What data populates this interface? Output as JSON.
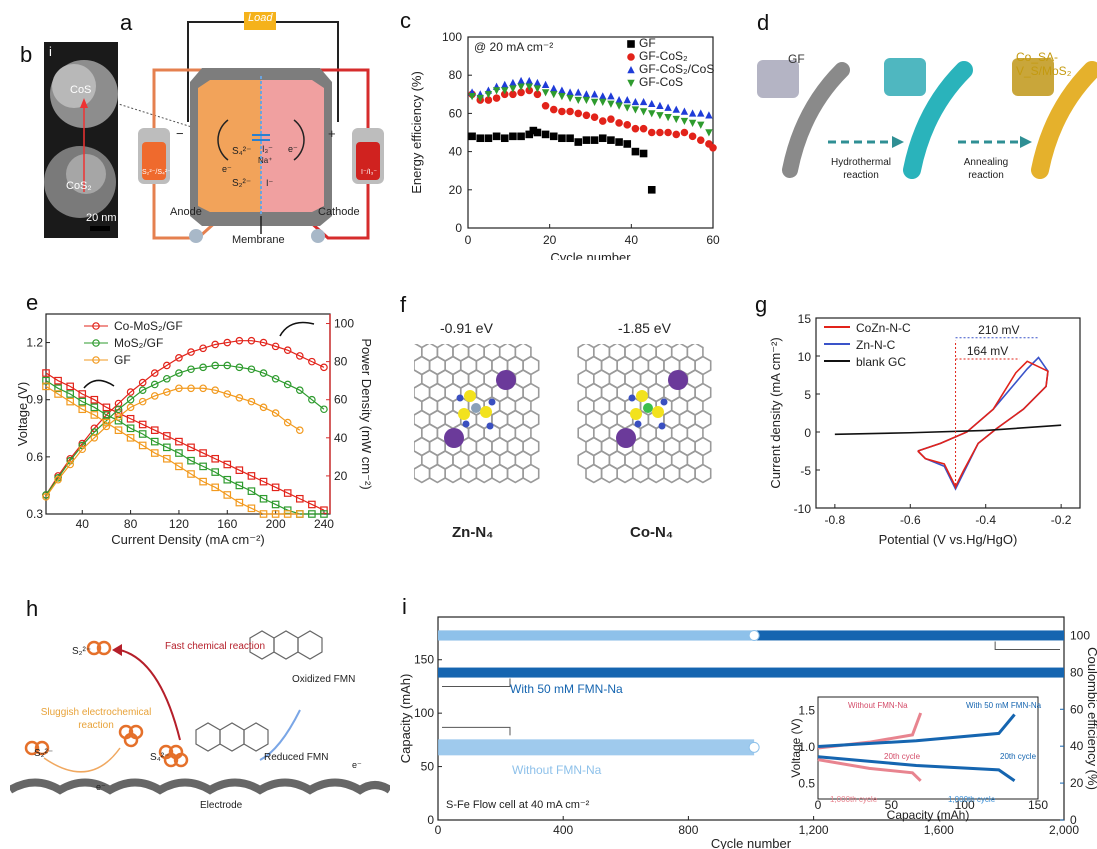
{
  "panels": {
    "a": {
      "label": "a",
      "load": "Load",
      "minus": "−",
      "plus": "+",
      "anode": "Anode",
      "cathode": "Cathode",
      "membrane": "Membrane",
      "anode_tank": "S₂²⁻/S₄²⁻",
      "cathode_tank": "I⁻/I₃⁻",
      "s4": "S₄²⁻",
      "s2": "S₂²⁻",
      "i3": "I₃⁻",
      "i": "I⁻",
      "na": "Na⁺",
      "e1": "e⁻",
      "e2": "e⁻"
    },
    "b": {
      "label": "b",
      "sub": "i",
      "cos": "CoS",
      "cos2": "CoS₂",
      "scale": "20 nm"
    },
    "c": {
      "label": "c"
    },
    "d": {
      "label": "d",
      "gf": "GF",
      "final": "Co_SA-V_S/MoS₂",
      "step1": "Hydrothermal reaction",
      "step2": "Annealing reaction"
    },
    "e": {
      "label": "e"
    },
    "f": {
      "label": "f",
      "e1": "-0.91 eV",
      "e2": "-1.85 eV",
      "n1": "Zn-N₄",
      "n2": "Co-N₄"
    },
    "g": {
      "label": "g",
      "d1": "210 mV",
      "d2": "164 mV"
    },
    "h": {
      "label": "h",
      "fast": "Fast chemical reaction",
      "slug": "Sluggish electrochemical reaction",
      "ox": "Oxidized FMN",
      "red": "Reduced FMN",
      "electrode": "Electrode",
      "s2": "S₂²⁻",
      "s2b": "S₂²⁻",
      "s4": "S₄²⁻",
      "e1": "e⁻",
      "e2": "e⁻"
    },
    "i": {
      "label": "i",
      "with": "With 50 mM FMN-Na",
      "without": "Without FMN-Na",
      "cell": "S-Fe Flow cell at 40 mA cm⁻²",
      "inset_without": "Without FMN-Na",
      "inset_with": "With 50 mM FMN-Na",
      "c20a": "20th cycle",
      "c20b": "20th cycle",
      "c1000a": "1,000th cycle",
      "c1000b": "1,000th cycle"
    }
  },
  "chart_data": [
    {
      "id": "c",
      "type": "scatter",
      "annotation": "@ 20 mA cm⁻²",
      "xlabel": "Cycle number",
      "ylabel": "Energy efficiency (%)",
      "xlim": [
        0,
        60
      ],
      "ylim": [
        0,
        100
      ],
      "xticks": [
        "0",
        "20",
        "40",
        "60"
      ],
      "yticks": [
        "0",
        "20",
        "40",
        "60",
        "80",
        "100"
      ],
      "series": [
        {
          "name": "GF",
          "color": "#000000",
          "marker": "square",
          "x": [
            1,
            3,
            5,
            7,
            9,
            11,
            13,
            15,
            16,
            17,
            19,
            21,
            23,
            25,
            27,
            29,
            31,
            33,
            35,
            37,
            39,
            41,
            43,
            45
          ],
          "y": [
            48,
            47,
            47,
            48,
            47,
            48,
            48,
            49,
            51,
            50,
            49,
            48,
            47,
            47,
            45,
            46,
            46,
            47,
            46,
            45,
            44,
            40,
            39,
            20
          ]
        },
        {
          "name": "GF-CoS₂",
          "color": "#e2231a",
          "marker": "circle",
          "x": [
            1,
            3,
            5,
            7,
            9,
            11,
            13,
            15,
            17,
            19,
            21,
            23,
            25,
            27,
            29,
            31,
            33,
            35,
            37,
            39,
            41,
            43,
            45,
            47,
            49,
            51,
            53,
            55,
            57,
            59,
            60
          ],
          "y": [
            70,
            67,
            67,
            68,
            70,
            70,
            71,
            72,
            70,
            64,
            62,
            61,
            61,
            60,
            59,
            58,
            56,
            57,
            55,
            54,
            52,
            52,
            50,
            50,
            50,
            49,
            50,
            48,
            46,
            44,
            42
          ]
        },
        {
          "name": "GF-CoS₂/CoS",
          "color": "#1f3cd8",
          "marker": "triangle",
          "x": [
            1,
            3,
            5,
            7,
            9,
            11,
            13,
            15,
            17,
            19,
            21,
            23,
            25,
            27,
            29,
            31,
            33,
            35,
            37,
            39,
            41,
            43,
            45,
            47,
            49,
            51,
            53,
            55,
            57,
            59
          ],
          "y": [
            71,
            70,
            72,
            74,
            75,
            76,
            77,
            77,
            76,
            75,
            73,
            72,
            71,
            71,
            70,
            70,
            69,
            69,
            67,
            67,
            66,
            66,
            65,
            64,
            63,
            62,
            61,
            60,
            60,
            59
          ]
        },
        {
          "name": "GF-CoS",
          "color": "#2e9b2e",
          "marker": "triangle-down",
          "x": [
            1,
            3,
            5,
            7,
            9,
            11,
            13,
            15,
            17,
            19,
            21,
            23,
            25,
            27,
            29,
            31,
            33,
            35,
            37,
            39,
            41,
            43,
            45,
            47,
            49,
            51,
            53,
            55,
            57,
            59
          ],
          "y": [
            69,
            68,
            70,
            72,
            72,
            73,
            74,
            74,
            73,
            71,
            70,
            69,
            68,
            67,
            67,
            66,
            66,
            65,
            64,
            63,
            62,
            61,
            60,
            59,
            58,
            57,
            56,
            55,
            54,
            50
          ]
        }
      ]
    },
    {
      "id": "e",
      "type": "line",
      "xlabel": "Current Density (mA cm⁻²)",
      "ylabel": "Voltage (V)",
      "y2label": "Power Density (mW cm⁻²)",
      "xlim": [
        10,
        245
      ],
      "ylim": [
        0.3,
        1.35
      ],
      "y2lim": [
        0,
        105
      ],
      "xticks": [
        "40",
        "80",
        "120",
        "160",
        "200",
        "240"
      ],
      "yticks": [
        "0.3",
        "0.6",
        "0.9",
        "1.2"
      ],
      "y2ticks": [
        "20",
        "40",
        "60",
        "80",
        "100"
      ],
      "series": [
        {
          "name": "Co-MoS₂/GF",
          "color": "#e2231a",
          "x": [
            10,
            20,
            30,
            40,
            50,
            60,
            70,
            80,
            90,
            100,
            110,
            120,
            130,
            140,
            150,
            160,
            170,
            180,
            190,
            200,
            210,
            220,
            230,
            240
          ],
          "voltage": [
            1.04,
            1.0,
            0.97,
            0.93,
            0.9,
            0.86,
            0.83,
            0.8,
            0.77,
            0.74,
            0.71,
            0.68,
            0.65,
            0.62,
            0.59,
            0.56,
            0.53,
            0.5,
            0.47,
            0.44,
            0.41,
            0.38,
            0.35,
            0.32
          ],
          "power": [
            10,
            20,
            29,
            37,
            45,
            52,
            58,
            64,
            69,
            74,
            78,
            82,
            85,
            87,
            89,
            90,
            91,
            91,
            90,
            88,
            86,
            83,
            80,
            77
          ]
        },
        {
          "name": "MoS₂/GF",
          "color": "#2e9b2e",
          "x": [
            10,
            20,
            30,
            40,
            50,
            60,
            70,
            80,
            90,
            100,
            110,
            120,
            130,
            140,
            150,
            160,
            170,
            180,
            190,
            200,
            210,
            220,
            230,
            240
          ],
          "voltage": [
            1.0,
            0.96,
            0.93,
            0.89,
            0.86,
            0.82,
            0.79,
            0.75,
            0.72,
            0.68,
            0.65,
            0.62,
            0.58,
            0.55,
            0.52,
            0.48,
            0.45,
            0.42,
            0.38,
            0.35,
            0.32,
            0.3,
            0.3,
            0.3
          ],
          "power": [
            10,
            19,
            28,
            36,
            43,
            49,
            55,
            60,
            65,
            68,
            71,
            74,
            76,
            77,
            78,
            78,
            77,
            76,
            74,
            71,
            68,
            65,
            60,
            55
          ]
        },
        {
          "name": "GF",
          "color": "#f29a1f",
          "x": [
            10,
            20,
            30,
            40,
            50,
            60,
            70,
            80,
            90,
            100,
            110,
            120,
            130,
            140,
            150,
            160,
            170,
            180,
            190,
            200,
            210,
            220
          ],
          "voltage": [
            0.97,
            0.93,
            0.89,
            0.85,
            0.82,
            0.78,
            0.74,
            0.7,
            0.66,
            0.62,
            0.59,
            0.55,
            0.51,
            0.47,
            0.44,
            0.4,
            0.36,
            0.33,
            0.3,
            0.3,
            0.3,
            0.3
          ],
          "power": [
            9,
            18,
            26,
            34,
            40,
            46,
            51,
            56,
            59,
            62,
            64,
            66,
            66,
            66,
            65,
            63,
            61,
            59,
            56,
            53,
            48,
            44
          ]
        }
      ]
    },
    {
      "id": "g",
      "type": "line",
      "xlabel": "Potential (V vs.Hg/HgO)",
      "ylabel": "Current density (mA cm⁻²)",
      "xlim": [
        -0.85,
        -0.15
      ],
      "ylim": [
        -10,
        15
      ],
      "xticks": [
        "-0.8",
        "-0.6",
        "-0.4",
        "-0.2"
      ],
      "yticks": [
        "-10",
        "-5",
        "0",
        "5",
        "10",
        "15"
      ],
      "series": [
        {
          "name": "CoZn-N-C",
          "color": "#e2231a"
        },
        {
          "name": "Zn-N-C",
          "color": "#3a53c9"
        },
        {
          "name": "blank GC",
          "color": "#111111"
        }
      ]
    },
    {
      "id": "i",
      "type": "scatter",
      "xlabel": "Cycle number",
      "ylabel": "Capacity (mAh)",
      "y2label": "Coulombic efficiency (%)",
      "xlim": [
        0,
        2000
      ],
      "ylim": [
        0,
        190
      ],
      "y2lim": [
        0,
        110
      ],
      "xticks": [
        "0",
        "400",
        "800",
        "1,200",
        "1,600",
        "2,000"
      ],
      "yticks": [
        "0",
        "50",
        "100",
        "150"
      ],
      "y2ticks": [
        "0",
        "20",
        "40",
        "60",
        "80",
        "100"
      ],
      "series": [
        {
          "name": "With 50 mM FMN-Na",
          "color": "#1565b0",
          "capacity": 138,
          "ce": 100,
          "x_end": 2000
        },
        {
          "name": "Without FMN-Na",
          "color": "#8ec1ea",
          "capacity": 68,
          "ce": 100,
          "x_end": 1010
        }
      ],
      "inset": {
        "xlabel": "Capacity (mAh)",
        "ylabel": "Voltage (V)",
        "xticks": [
          "0",
          "50",
          "100",
          "150"
        ],
        "yticks": [
          "0.5",
          "1.0",
          "1.5"
        ]
      }
    }
  ]
}
